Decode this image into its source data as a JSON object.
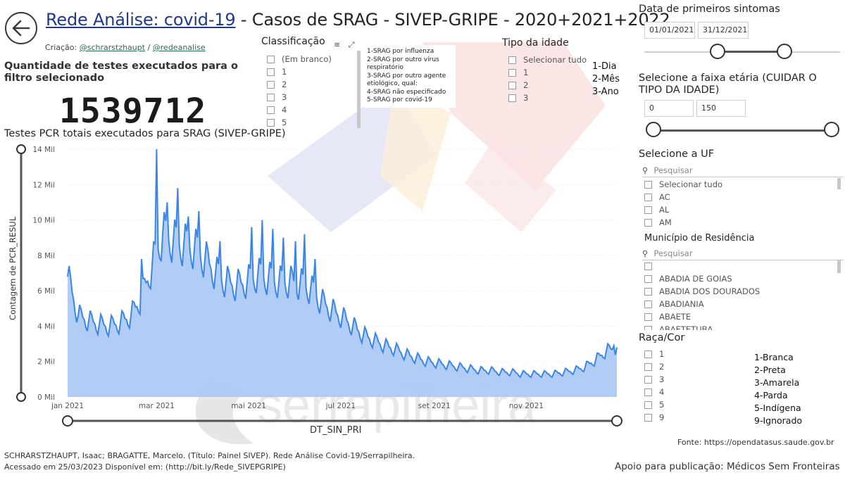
{
  "header": {
    "title_link": "Rede Análise: covid-19",
    "title_rest": " - Casos de SRAG - SIVEP-GRIPE - 2020+2021+2022",
    "credits_prefix": "Criação: ",
    "credit_1": "@schrarstzhaupt",
    "credit_sep": " / ",
    "credit_2": "@redeanalise"
  },
  "kpi": {
    "label": "Quantidade de testes executados para o filtro selecionado",
    "value": "1539712"
  },
  "classificacao": {
    "title": "Classificação",
    "items": [
      "(Em branco)",
      "1",
      "2",
      "3",
      "4",
      "5"
    ],
    "legend": [
      "1-SRAG por influenza",
      "2-SRAG por outro vírus respiratório",
      "3-SRAG por outro agente etiológico, qual:",
      "4-SRAG não especificado",
      "5-SRAG por covid-19"
    ]
  },
  "tipo_idade": {
    "title": "Tipo da idade",
    "items": [
      "Selecionar tudo",
      "1",
      "2",
      "3"
    ],
    "legend": [
      "1-Dia",
      "2-Mês",
      "3-Ano"
    ]
  },
  "date_filter": {
    "title": "Data de primeiros sintomas",
    "start": "01/01/2021",
    "end": "31/12/2021",
    "range_fraction": [
      0.374,
      0.715
    ]
  },
  "age_filter": {
    "title": "Selecione a faixa etária (CUIDAR O TIPO DA IDADE)",
    "min": "0",
    "max": "150"
  },
  "uf_filter": {
    "title": "Selecione a UF",
    "search_placeholder": "Pesquisar",
    "items": [
      "Selecionar tudo",
      "AC",
      "AL",
      "AM"
    ]
  },
  "municipio_filter": {
    "title": "Município de Residência",
    "search_placeholder": "Pesquisar",
    "items": [
      "",
      "ABADIA DE GOIAS",
      "ABADIA DOS DOURADOS",
      "ABADIANIA",
      "ABAETE",
      "ABAETETUBA"
    ]
  },
  "raca_filter": {
    "title": "Raça/Cor",
    "items": [
      "1",
      "2",
      "3",
      "4",
      "5",
      "9"
    ],
    "legend": [
      "1-Branca",
      "2-Preta",
      "3-Amarela",
      "4-Parda",
      "5-Indígena",
      "9-Ignorado"
    ]
  },
  "footer": {
    "source": "Fonte: https://opendatasus.saude.gov.br",
    "citation_1": "SCHRARSTZHAUPT, Isaac; BRAGATTE, Marcelo. (Título: Painel SIVEP). Rede Análise Covid-19/Serrapilheira.",
    "citation_2": "Acessado em 25/03/2023 Disponível em: (http://bit.ly/Rede_SIVEPGRIPE)",
    "support": "Apoio para publicação: Médicos Sem Fronteiras",
    "watermark": "serrapilheira"
  },
  "colors": {
    "area_fill": "#a8c8f5",
    "line": "#3a86e8",
    "title_link": "#1f3a8a"
  },
  "chart_data": {
    "type": "area",
    "title": "Testes PCR totais executados para SRAG (SIVEP-GRIPE)",
    "xlabel": "DT_SIN_PRI",
    "ylabel": "Contagem de PCR_RESUL",
    "ylim": [
      0,
      14000
    ],
    "y_ticks": [
      "0 Mil",
      "2 Mil",
      "4 Mil",
      "6 Mil",
      "8 Mil",
      "10 Mil",
      "12 Mil",
      "14 Mil"
    ],
    "x_ticks": [
      "jan 2021",
      "mar 2021",
      "mai 2021",
      "jul 2021",
      "set 2021",
      "nov 2021"
    ],
    "x_range": [
      "2021-01-01",
      "2021-12-31"
    ],
    "weekly_anchors": [
      {
        "date": "2021-01-01",
        "value": 6800
      },
      {
        "date": "2021-01-08",
        "value": 4600
      },
      {
        "date": "2021-01-15",
        "value": 4300
      },
      {
        "date": "2021-01-22",
        "value": 4100
      },
      {
        "date": "2021-01-29",
        "value": 4000
      },
      {
        "date": "2021-02-05",
        "value": 4200
      },
      {
        "date": "2021-02-12",
        "value": 4600
      },
      {
        "date": "2021-02-19",
        "value": 5600
      },
      {
        "date": "2021-02-26",
        "value": 7400
      },
      {
        "date": "2021-03-05",
        "value": 9200
      },
      {
        "date": "2021-03-12",
        "value": 8800
      },
      {
        "date": "2021-03-19",
        "value": 8600
      },
      {
        "date": "2021-03-26",
        "value": 8400
      },
      {
        "date": "2021-04-02",
        "value": 7800
      },
      {
        "date": "2021-04-09",
        "value": 7000
      },
      {
        "date": "2021-04-16",
        "value": 6500
      },
      {
        "date": "2021-04-23",
        "value": 6300
      },
      {
        "date": "2021-04-30",
        "value": 6500
      },
      {
        "date": "2021-05-07",
        "value": 6900
      },
      {
        "date": "2021-05-14",
        "value": 6700
      },
      {
        "date": "2021-05-21",
        "value": 6500
      },
      {
        "date": "2021-05-28",
        "value": 6500
      },
      {
        "date": "2021-06-04",
        "value": 6400
      },
      {
        "date": "2021-06-11",
        "value": 6100
      },
      {
        "date": "2021-06-18",
        "value": 5400
      },
      {
        "date": "2021-06-25",
        "value": 4900
      },
      {
        "date": "2021-07-02",
        "value": 4500
      },
      {
        "date": "2021-07-09",
        "value": 4000
      },
      {
        "date": "2021-07-16",
        "value": 3500
      },
      {
        "date": "2021-07-23",
        "value": 3200
      },
      {
        "date": "2021-07-30",
        "value": 2900
      },
      {
        "date": "2021-08-06",
        "value": 2700
      },
      {
        "date": "2021-08-13",
        "value": 2400
      },
      {
        "date": "2021-08-20",
        "value": 2200
      },
      {
        "date": "2021-08-27",
        "value": 2000
      },
      {
        "date": "2021-09-03",
        "value": 1900
      },
      {
        "date": "2021-09-10",
        "value": 1800
      },
      {
        "date": "2021-09-17",
        "value": 1700
      },
      {
        "date": "2021-09-24",
        "value": 1600
      },
      {
        "date": "2021-10-01",
        "value": 1500
      },
      {
        "date": "2021-10-08",
        "value": 1500
      },
      {
        "date": "2021-10-15",
        "value": 1400
      },
      {
        "date": "2021-10-22",
        "value": 1400
      },
      {
        "date": "2021-10-29",
        "value": 1300
      },
      {
        "date": "2021-11-05",
        "value": 1300
      },
      {
        "date": "2021-11-12",
        "value": 1300
      },
      {
        "date": "2021-11-19",
        "value": 1300
      },
      {
        "date": "2021-11-26",
        "value": 1400
      },
      {
        "date": "2021-12-03",
        "value": 1500
      },
      {
        "date": "2021-12-10",
        "value": 1700
      },
      {
        "date": "2021-12-17",
        "value": 2100
      },
      {
        "date": "2021-12-24",
        "value": 2600
      },
      {
        "date": "2021-12-31",
        "value": 2800
      }
    ],
    "peaks": [
      {
        "date": "2021-01-01",
        "value": 6800
      },
      {
        "date": "2021-02-19",
        "value": 7800
      },
      {
        "date": "2021-03-01",
        "value": 14000
      },
      {
        "date": "2021-03-08",
        "value": 11000
      },
      {
        "date": "2021-03-15",
        "value": 11800
      },
      {
        "date": "2021-03-22",
        "value": 10200
      },
      {
        "date": "2021-03-29",
        "value": 10500
      },
      {
        "date": "2021-04-12",
        "value": 8800
      },
      {
        "date": "2021-05-03",
        "value": 9600
      },
      {
        "date": "2021-05-10",
        "value": 10000
      },
      {
        "date": "2021-05-17",
        "value": 9500
      },
      {
        "date": "2021-05-24",
        "value": 9000
      },
      {
        "date": "2021-06-01",
        "value": 8800
      },
      {
        "date": "2021-06-07",
        "value": 9200
      },
      {
        "date": "2021-06-14",
        "value": 7800
      },
      {
        "date": "2021-12-29",
        "value": 2900
      }
    ]
  }
}
